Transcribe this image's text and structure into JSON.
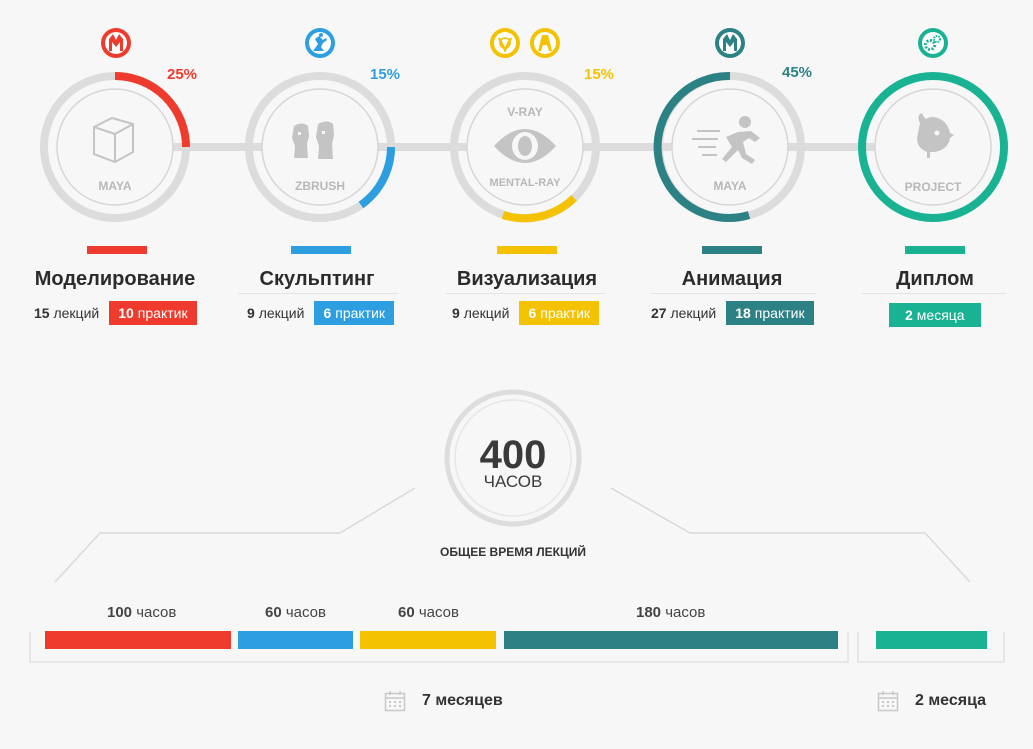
{
  "colors": {
    "red": "#ef3b2d",
    "blue": "#2d9ee0",
    "yellow": "#f4c200",
    "teal": "#2c8185",
    "green": "#19b394",
    "ring_gray": "#dcdcdc",
    "inner_gray": "#cfcfcf",
    "icon_gray": "#c4c4c4"
  },
  "steps": [
    {
      "id": "modeling",
      "badge_icons": [
        "maya-logo-icon"
      ],
      "percent": "25%",
      "circle_lines": [
        "MAYA"
      ],
      "center_icon": "cube-icon",
      "title": "Моделирование",
      "lectures_count": "15",
      "lectures_word": "лекций",
      "practice_count": "10",
      "practice_word": "практик"
    },
    {
      "id": "sculpting",
      "badge_icons": [
        "zbrush-logo-icon"
      ],
      "percent": "15%",
      "circle_lines": [
        "ZBRUSH"
      ],
      "center_icon": "moai-heads-icon",
      "title": "Скульптинг",
      "lectures_count": "9",
      "lectures_word": "лекций",
      "practice_count": "6",
      "practice_word": "практик"
    },
    {
      "id": "visualization",
      "badge_icons": [
        "vray-logo-icon",
        "mental-ray-logo-icon"
      ],
      "percent": "15%",
      "circle_lines": [
        "V-RAY",
        "MENTAL-RAY"
      ],
      "center_icon": "eye-icon",
      "title": "Визуализация",
      "lectures_count": "9",
      "lectures_word": "лекций",
      "practice_count": "6",
      "practice_word": "практик"
    },
    {
      "id": "animation",
      "badge_icons": [
        "maya-logo-icon"
      ],
      "percent": "45%",
      "circle_lines": [
        "MAYA"
      ],
      "center_icon": "running-man-icon",
      "title": "Анимация",
      "lectures_count": "27",
      "lectures_word": "лекций",
      "practice_count": "18",
      "practice_word": "практик"
    },
    {
      "id": "diploma",
      "badge_icons": [
        "gears-icon"
      ],
      "percent": "",
      "circle_lines": [
        "PROJECT"
      ],
      "center_icon": "bird-icon",
      "title": "Диплом",
      "duration_count": "2",
      "duration_word": "месяца"
    }
  ],
  "total": {
    "value": "400",
    "unit": "ЧАСОВ",
    "caption": "ОБЩЕЕ ВРЕМЯ ЛЕКЦИЙ"
  },
  "timeline": {
    "segments": [
      {
        "hours": "100",
        "word": "часов"
      },
      {
        "hours": "60",
        "word": "часов"
      },
      {
        "hours": "60",
        "word": "часов"
      },
      {
        "hours": "180",
        "word": "часов"
      }
    ],
    "main_duration": "7 месяцев",
    "diploma_duration": "2 месяца"
  }
}
